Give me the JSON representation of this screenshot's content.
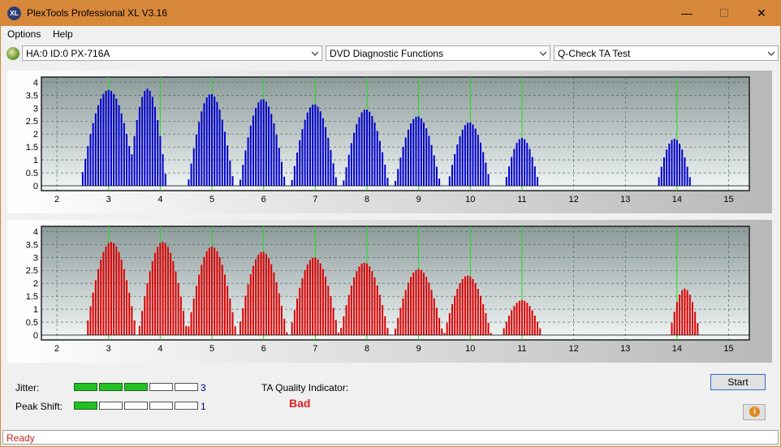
{
  "window": {
    "title": "PlexTools Professional XL V3.16",
    "app_icon_text": "XL",
    "minimize_glyph": "—",
    "maximize_glyph": "☐",
    "close_glyph": "✕"
  },
  "menu": {
    "items": [
      "Options",
      "Help"
    ]
  },
  "toolbar": {
    "drive": "HA:0 ID:0  PX-716A",
    "function": "DVD Diagnostic Functions",
    "test": "Q-Check TA Test"
  },
  "chart_data": [
    {
      "type": "bar",
      "name": "land",
      "color": "#0000cc",
      "xlim": [
        1.7,
        15.4
      ],
      "ylim": [
        0,
        4.2
      ],
      "xticks": [
        "2",
        "3",
        "4",
        "5",
        "6",
        "7",
        "8",
        "9",
        "10",
        "11",
        "12",
        "13",
        "14",
        "15"
      ],
      "yticks": [
        "0",
        "0.5",
        "1",
        "1.5",
        "2",
        "2.5",
        "3",
        "3.5",
        "4"
      ],
      "markers": [
        3,
        4,
        5,
        6,
        7,
        8,
        9,
        10,
        11,
        14
      ],
      "peaks": [
        {
          "x": 3.0,
          "height": 3.7,
          "spread": 0.55
        },
        {
          "x": 3.75,
          "height": 3.75,
          "spread": 0.38
        },
        {
          "x": 4.98,
          "height": 3.55,
          "spread": 0.45
        },
        {
          "x": 5.98,
          "height": 3.35,
          "spread": 0.45
        },
        {
          "x": 6.98,
          "height": 3.15,
          "spread": 0.45
        },
        {
          "x": 7.98,
          "height": 2.95,
          "spread": 0.45
        },
        {
          "x": 8.98,
          "height": 2.68,
          "spread": 0.45
        },
        {
          "x": 9.98,
          "height": 2.45,
          "spread": 0.42
        },
        {
          "x": 11.0,
          "height": 1.85,
          "spread": 0.34
        },
        {
          "x": 13.95,
          "height": 1.82,
          "spread": 0.34
        }
      ]
    },
    {
      "type": "bar",
      "name": "pit",
      "color": "#dd0000",
      "xlim": [
        1.7,
        15.4
      ],
      "ylim": [
        0,
        4.2
      ],
      "xticks": [
        "2",
        "3",
        "4",
        "5",
        "6",
        "7",
        "8",
        "9",
        "10",
        "11",
        "12",
        "13",
        "14",
        "15"
      ],
      "yticks": [
        "0",
        "0.5",
        "1",
        "1.5",
        "2",
        "2.5",
        "3",
        "3.5",
        "4"
      ],
      "markers": [
        3,
        4,
        5,
        6,
        7,
        8,
        9,
        10,
        11,
        14
      ],
      "peaks": [
        {
          "x": 3.05,
          "height": 3.6,
          "spread": 0.5
        },
        {
          "x": 4.05,
          "height": 3.6,
          "spread": 0.48
        },
        {
          "x": 5.0,
          "height": 3.42,
          "spread": 0.48
        },
        {
          "x": 5.98,
          "height": 3.22,
          "spread": 0.48
        },
        {
          "x": 6.98,
          "height": 3.0,
          "spread": 0.48
        },
        {
          "x": 7.95,
          "height": 2.8,
          "spread": 0.48
        },
        {
          "x": 9.0,
          "height": 2.55,
          "spread": 0.48
        },
        {
          "x": 9.95,
          "height": 2.3,
          "spread": 0.46
        },
        {
          "x": 11.0,
          "height": 1.35,
          "spread": 0.4
        },
        {
          "x": 14.15,
          "height": 1.8,
          "spread": 0.3
        }
      ]
    }
  ],
  "indicators": {
    "jitter_label": "Jitter:",
    "jitter_value": "3",
    "jitter_level": 3,
    "peak_shift_label": "Peak Shift:",
    "peak_shift_value": "1",
    "peak_shift_level": 1,
    "segments": 5
  },
  "ta_quality": {
    "label": "TA Quality Indicator:",
    "result": "Bad"
  },
  "buttons": {
    "start": "Start",
    "info_icon": "i"
  },
  "status": {
    "text": "Ready"
  }
}
